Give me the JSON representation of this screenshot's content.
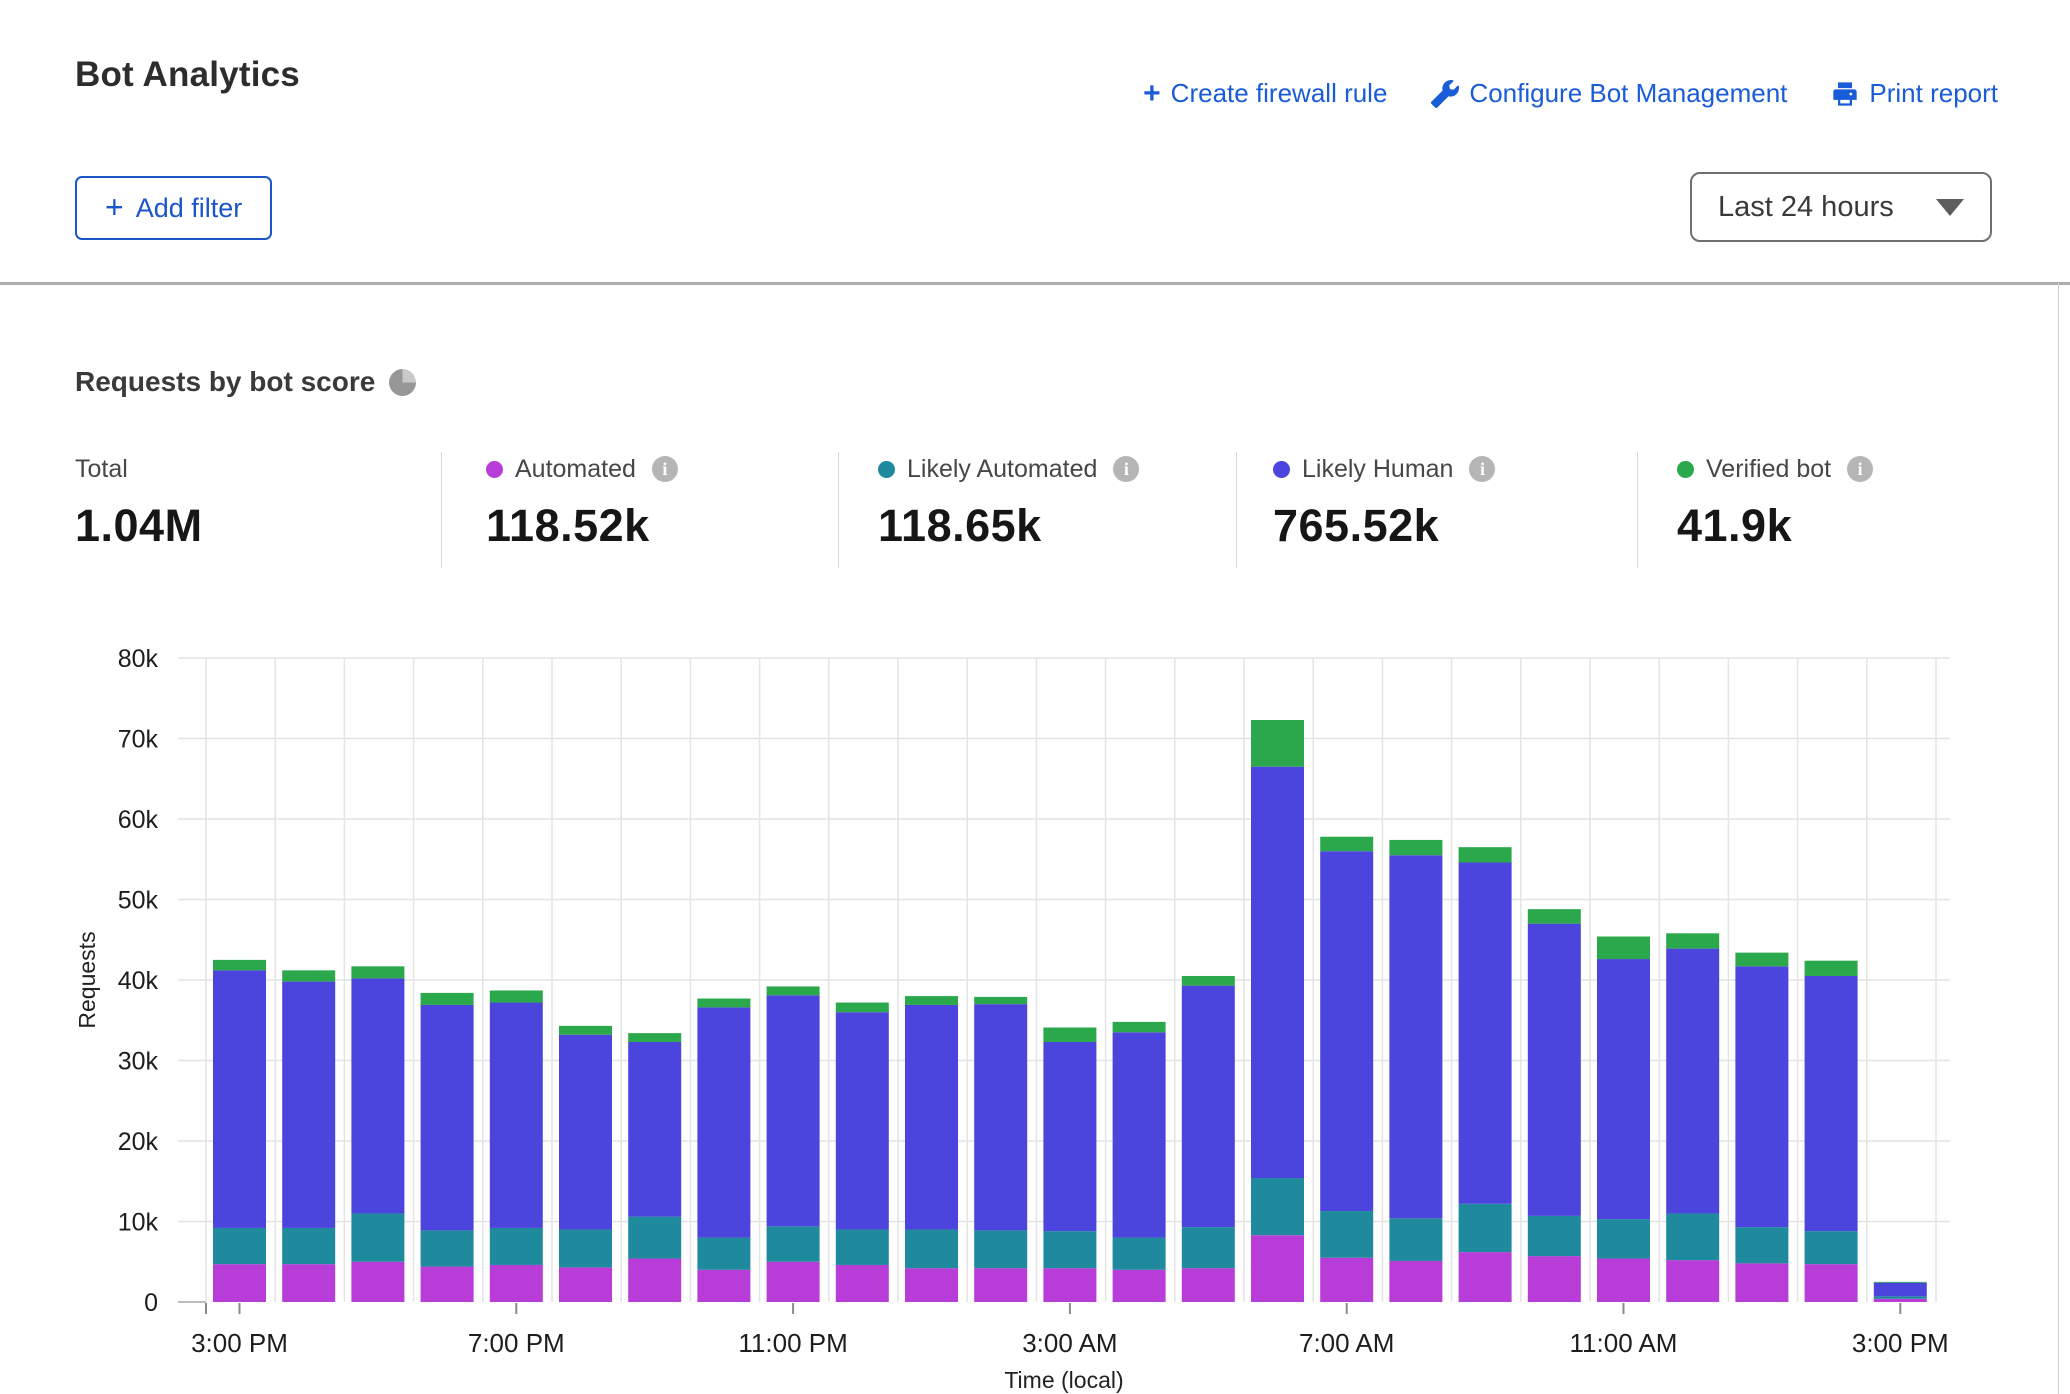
{
  "header": {
    "title": "Bot Analytics",
    "actions": [
      {
        "label": "Create firewall rule",
        "icon": "plus-icon"
      },
      {
        "label": "Configure Bot Management",
        "icon": "wrench-icon"
      },
      {
        "label": "Print report",
        "icon": "printer-icon"
      }
    ],
    "add_filter_label": "Add filter",
    "time_range_value": "Last 24 hours"
  },
  "section": {
    "title": "Requests by bot score",
    "icon": "pie-chart-icon"
  },
  "stats": {
    "total": {
      "label": "Total",
      "value": "1.04M"
    },
    "series": [
      {
        "label": "Automated",
        "value": "118.52k",
        "color": "#b83dd8"
      },
      {
        "label": "Likely Automated",
        "value": "118.65k",
        "color": "#1f8a9e"
      },
      {
        "label": "Likely Human",
        "value": "765.52k",
        "color": "#4b44dd"
      },
      {
        "label": "Verified bot",
        "value": "41.9k",
        "color": "#2ba84c"
      }
    ]
  },
  "chart_data": {
    "type": "bar",
    "stacked": true,
    "title": "Requests by bot score",
    "xlabel": "Time (local)",
    "ylabel": "Requests",
    "ylim_k": [
      0,
      80
    ],
    "y_ticks": [
      "0",
      "10k",
      "20k",
      "30k",
      "40k",
      "50k",
      "60k",
      "70k",
      "80k"
    ],
    "grid": true,
    "legend_position": "top-stats-row",
    "categories": [
      "3:00 PM",
      "4:00 PM",
      "5:00 PM",
      "6:00 PM",
      "7:00 PM",
      "8:00 PM",
      "9:00 PM",
      "10:00 PM",
      "11:00 PM",
      "12:00 AM",
      "1:00 AM",
      "2:00 AM",
      "3:00 AM",
      "4:00 AM",
      "5:00 AM",
      "6:00 AM",
      "7:00 AM",
      "8:00 AM",
      "9:00 AM",
      "10:00 AM",
      "11:00 AM",
      "12:00 PM",
      "1:00 PM",
      "2:00 PM",
      "3:00 PM"
    ],
    "x_tick_indices": [
      0,
      4,
      8,
      12,
      16,
      20,
      24
    ],
    "x_tick_labels": [
      "3:00 PM",
      "7:00 PM",
      "11:00 PM",
      "3:00 AM",
      "7:00 AM",
      "11:00 AM",
      "3:00 PM"
    ],
    "series": [
      {
        "name": "Automated",
        "color": "#b83dd8",
        "values_k": [
          4.7,
          4.7,
          5.0,
          4.4,
          4.6,
          4.3,
          5.4,
          4.0,
          5.0,
          4.6,
          4.2,
          4.2,
          4.2,
          4.0,
          4.2,
          8.3,
          5.5,
          5.1,
          6.2,
          5.7,
          5.4,
          5.2,
          4.8,
          4.7,
          0.4
        ]
      },
      {
        "name": "Likely Automated",
        "color": "#1f8a9e",
        "values_k": [
          4.5,
          4.5,
          6.0,
          4.5,
          4.6,
          4.7,
          5.2,
          4.0,
          4.4,
          4.4,
          4.8,
          4.7,
          4.6,
          4.0,
          5.1,
          7.1,
          5.8,
          5.3,
          6.0,
          5.0,
          4.9,
          5.8,
          4.5,
          4.1,
          0.3
        ]
      },
      {
        "name": "Likely Human",
        "color": "#4b44dd",
        "values_k": [
          32.0,
          30.6,
          29.2,
          28.0,
          28.0,
          24.2,
          21.7,
          28.6,
          28.7,
          27.0,
          27.9,
          28.1,
          23.5,
          25.5,
          30.0,
          51.1,
          44.7,
          45.1,
          42.4,
          36.3,
          32.3,
          32.9,
          32.4,
          31.7,
          1.7
        ]
      },
      {
        "name": "Verified bot",
        "color": "#2ba84c",
        "values_k": [
          1.3,
          1.4,
          1.5,
          1.5,
          1.5,
          1.1,
          1.1,
          1.1,
          1.1,
          1.2,
          1.1,
          0.9,
          1.8,
          1.3,
          1.2,
          5.8,
          1.8,
          1.9,
          1.9,
          1.8,
          2.8,
          1.9,
          1.7,
          1.9,
          0.1
        ]
      }
    ]
  }
}
